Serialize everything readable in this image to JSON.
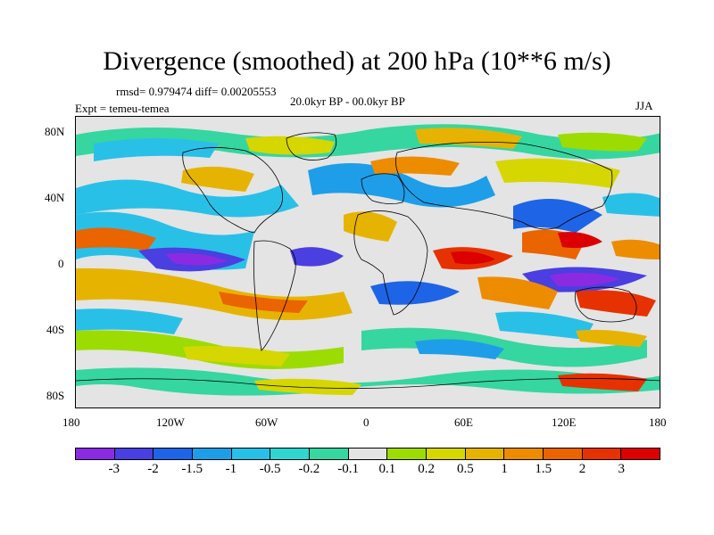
{
  "title": "Divergence (smoothed) at 200 hPa (10**6 m/s)",
  "stats": "rmsd= 0.979474 diff= 0.00205553",
  "expt": "Expt = temeu-temea",
  "period": "20.0kyr BP - 00.0kyr BP",
  "season": "JJA",
  "lat_ticks": [
    "80N",
    "40N",
    "0",
    "40S",
    "80S"
  ],
  "lon_ticks": [
    "180",
    "120W",
    "60W",
    "0",
    "60E",
    "120E",
    "180"
  ],
  "colorbar": {
    "colors": [
      "#8a2be2",
      "#4a3fe0",
      "#1e64e6",
      "#1e9ee8",
      "#29c0e8",
      "#2fd6d0",
      "#36d6a0",
      "#e4e4e4",
      "#9cdc00",
      "#d6d600",
      "#e6b400",
      "#ee8c00",
      "#ea6400",
      "#e63200",
      "#dc0000"
    ],
    "labels": [
      "-3",
      "-2",
      "-1.5",
      "-1",
      "-0.5",
      "-0.2",
      "-0.1",
      "0.1",
      "0.2",
      "0.5",
      "1",
      "1.5",
      "2",
      "3"
    ]
  }
}
